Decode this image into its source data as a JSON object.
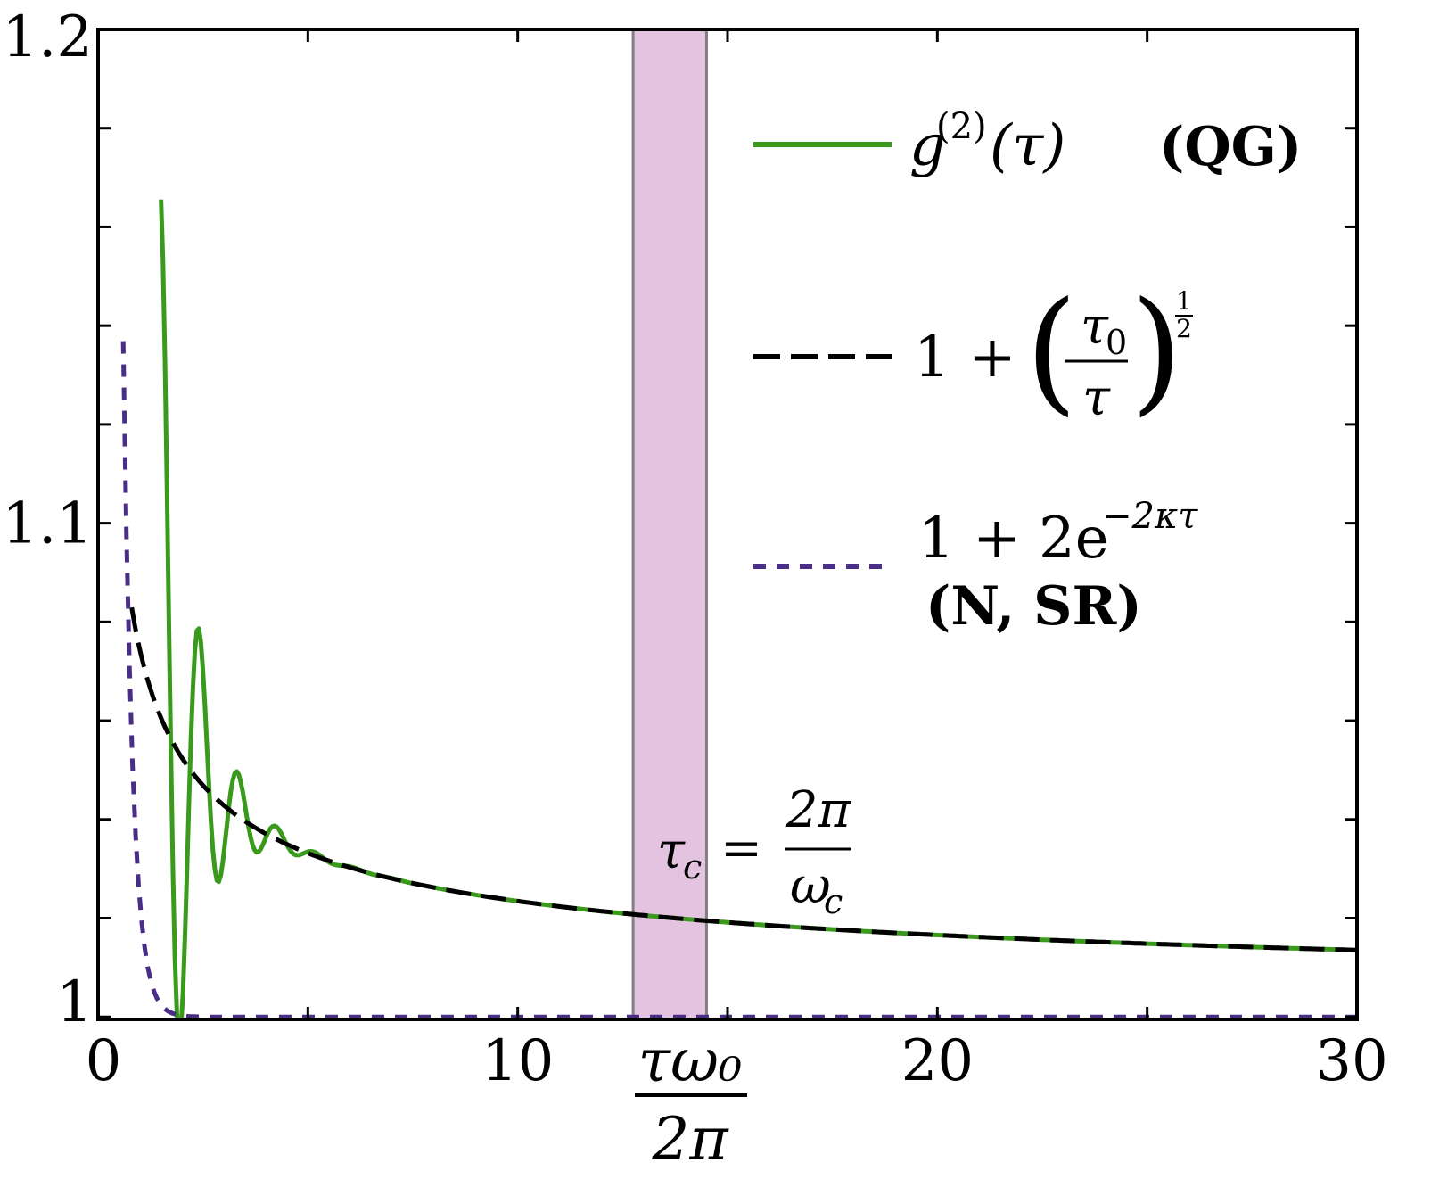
{
  "chart_data": {
    "type": "line",
    "title": "",
    "xlabel_numerator": "τω₀",
    "xlabel_denominator": "2π",
    "ylabel": "",
    "xlim": [
      0,
      30
    ],
    "ylim": [
      0.9995,
      1.2
    ],
    "x_ticks": [
      0,
      10,
      20,
      30
    ],
    "x_tick_labels": [
      "0",
      "10",
      "20",
      "30"
    ],
    "y_tick_labels": [
      {
        "value": 1.0,
        "label": "1"
      },
      {
        "value": 1.1,
        "label": "1.1"
      },
      {
        "value": 1.2,
        "label": "1.2"
      }
    ],
    "shaded_band": {
      "x_start": 12.75,
      "x_end": 14.5,
      "label_lhs": "τ",
      "label_lhs_sub": "c",
      "label_eq": "=",
      "label_numerator": "2π",
      "label_denominator": "ω",
      "label_denominator_sub": "c",
      "color": "#e4c3e0"
    },
    "series": [
      {
        "name": "g(2)(τ) (QG)",
        "color": "#3a9a1c",
        "style": "solid",
        "model": "sqrt_decay_with_oscillation",
        "tau0": 0.0055,
        "oscillation_amplitude": 0.105,
        "oscillation_period": 0.92,
        "oscillation_decay": 1.35,
        "x_start": 1.5,
        "x_end": 30,
        "samples": 600
      },
      {
        "name": "1 + (τ0/τ)^(1/2)",
        "color": "#000000",
        "style": "dashed",
        "model": "sqrt_decay",
        "tau0": 0.0055,
        "x_start": 0.8,
        "x_end": 30,
        "samples": 400
      },
      {
        "name": "1 + 2e^(-2κτ) (N, SR)",
        "color": "#4a2d86",
        "style": "dotted",
        "model": "exp_decay",
        "two_kappa": 4.47,
        "x_start": 0.6,
        "x_end": 30,
        "samples": 400
      }
    ],
    "legend": {
      "position": "top-right",
      "entries": [
        {
          "prefix": "g",
          "sup": "(2)",
          "paren": "(τ)",
          "tag": "(QG)"
        },
        {
          "one_plus": "1 +",
          "frac_num": "τ",
          "frac_num_sub": "0",
          "frac_den": "τ",
          "exponent_num": "1",
          "exponent_den": "2"
        },
        {
          "formula_main": "1 + 2e",
          "formula_sup": "−2κτ",
          "tag": "(N, SR)"
        }
      ]
    }
  },
  "colors": {
    "green": "#3a9a1c",
    "black": "#000000",
    "purple": "#4a2d86",
    "band": "#e4c3e0",
    "band_edge": "#808080"
  }
}
